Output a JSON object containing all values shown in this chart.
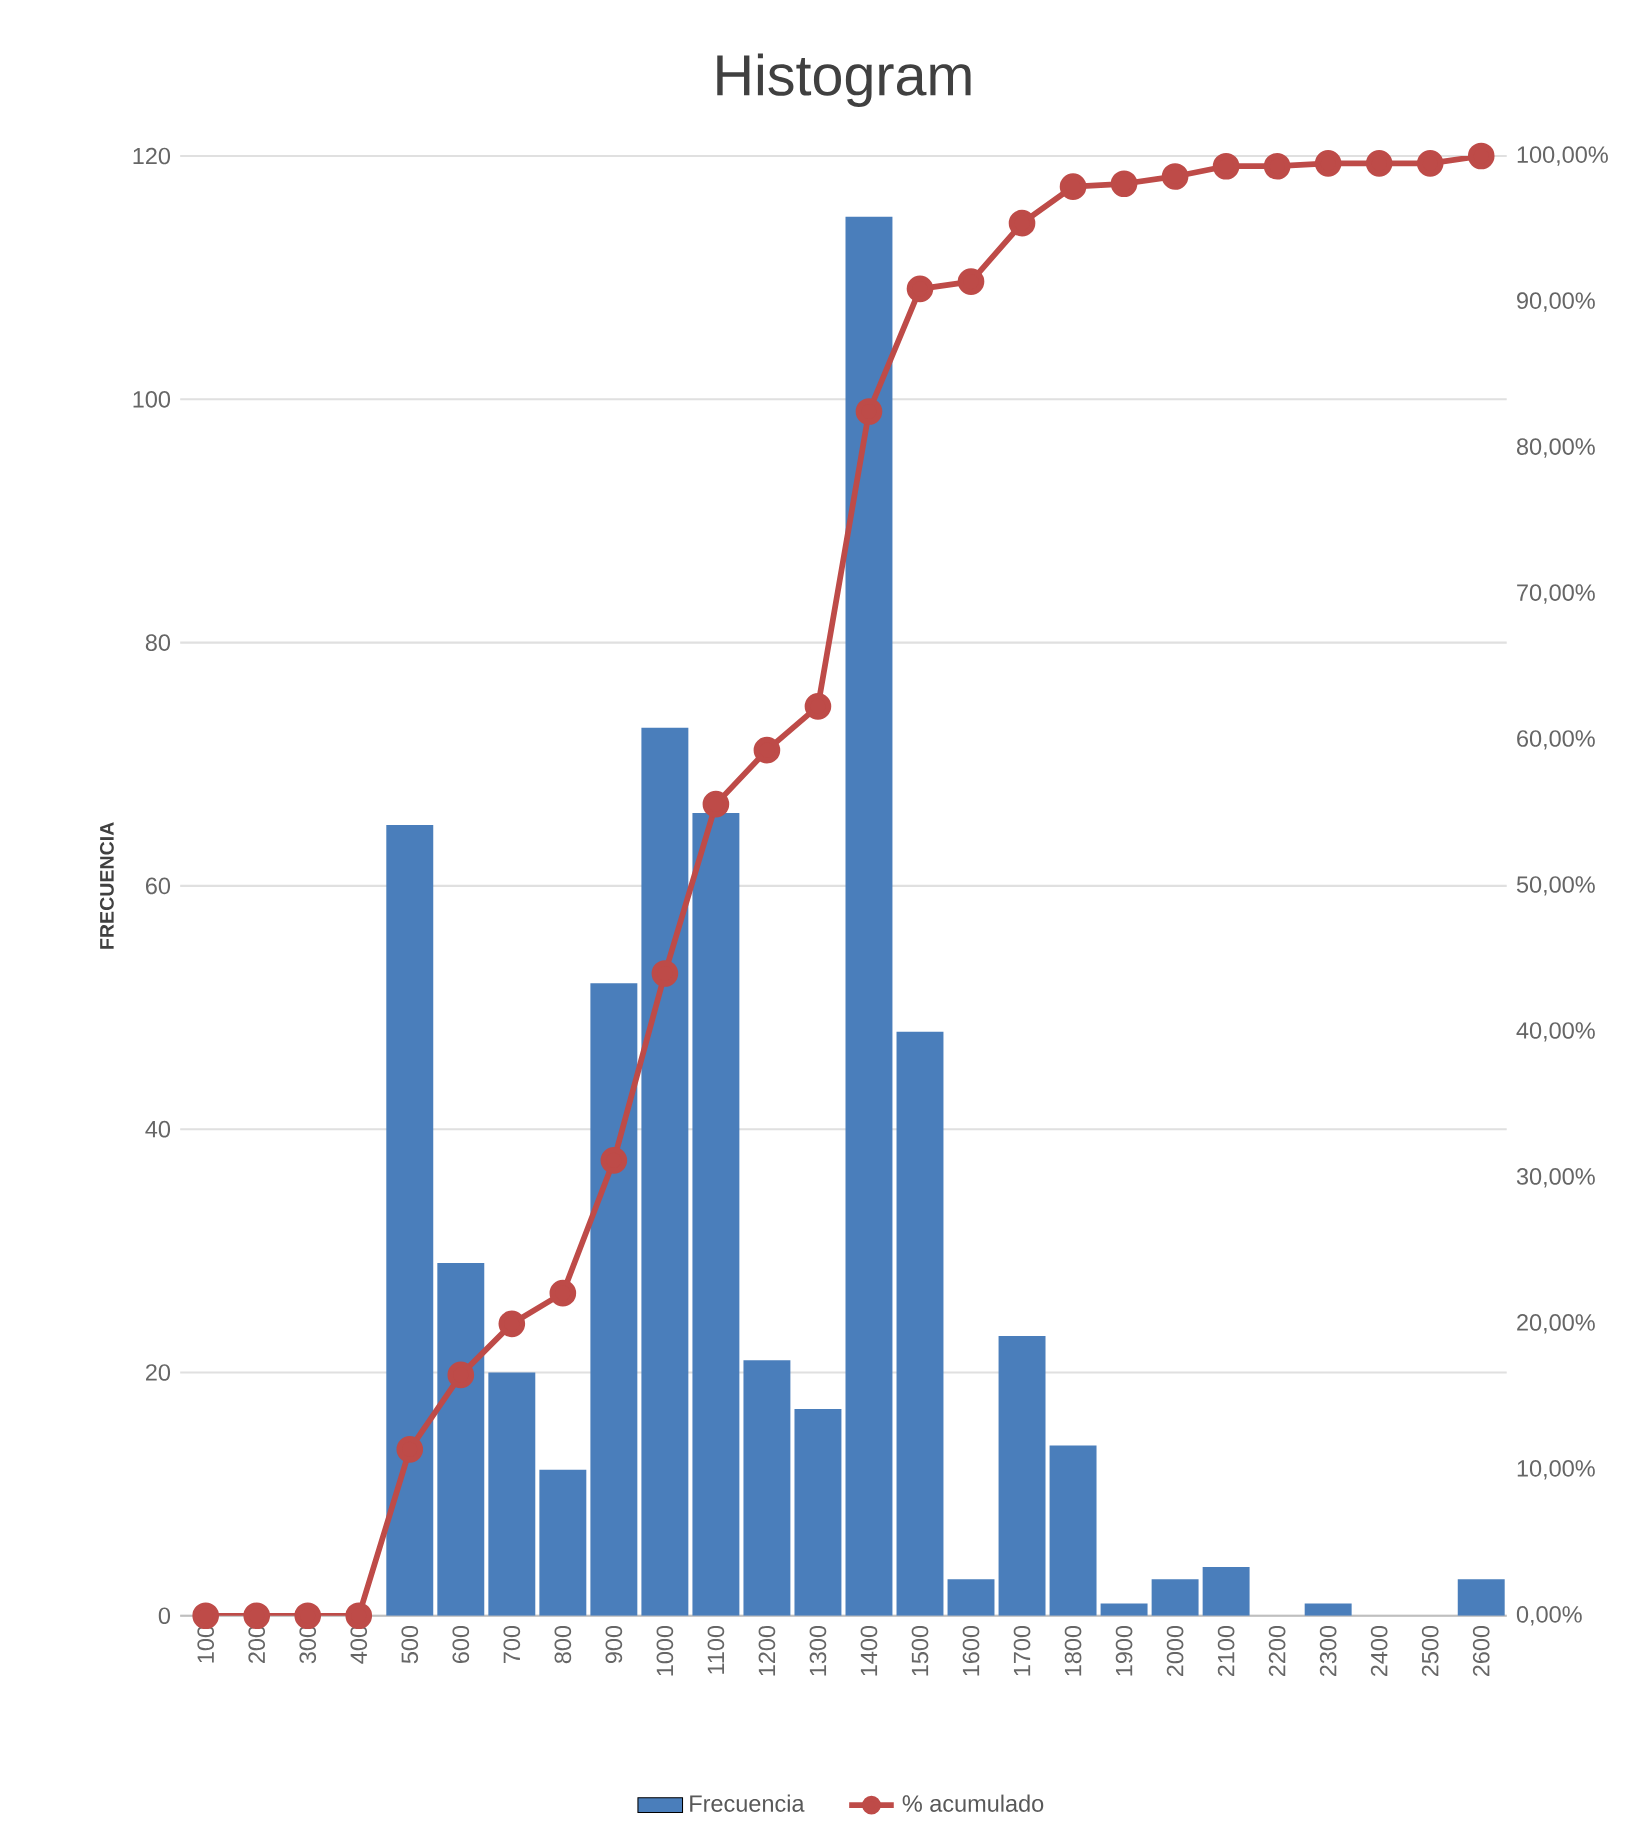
{
  "chart_data": {
    "type": "bar",
    "title": "Histogram",
    "ylabel": "FRECUENCIA",
    "categories": [
      "100",
      "200",
      "300",
      "400",
      "500",
      "600",
      "700",
      "800",
      "900",
      "1000",
      "1100",
      "1200",
      "1300",
      "1400",
      "1500",
      "1600",
      "1700",
      "1800",
      "1900",
      "2000",
      "2100",
      "2200",
      "2300",
      "2400",
      "2500",
      "2600"
    ],
    "series": [
      {
        "name": "Frecuencia",
        "color": "#4a7ebb",
        "values": [
          0,
          0,
          0,
          0,
          65,
          29,
          20,
          12,
          52,
          73,
          66,
          21,
          17,
          115,
          48,
          3,
          23,
          14,
          1,
          3,
          4,
          0,
          1,
          0,
          0,
          3
        ]
      },
      {
        "name": "% acumulado",
        "type": "line",
        "axis": "y2",
        "color": "#be4b48",
        "marker": "circle",
        "values": [
          0,
          0,
          0,
          0,
          11.4,
          16.5,
          20.0,
          22.1,
          31.2,
          44.0,
          55.6,
          59.3,
          62.3,
          82.5,
          90.9,
          91.4,
          95.4,
          97.9,
          98.1,
          98.6,
          99.3,
          99.3,
          99.5,
          99.5,
          99.5,
          100
        ]
      }
    ],
    "ylim": [
      0,
      120
    ],
    "yticks": [
      0,
      20,
      40,
      60,
      80,
      100,
      120
    ],
    "y2lim": [
      0,
      100
    ],
    "y2ticks": [
      {
        "value": 0,
        "label": "0,00%"
      },
      {
        "value": 10,
        "label": "10,00%"
      },
      {
        "value": 20,
        "label": "20,00%"
      },
      {
        "value": 30,
        "label": "30,00%"
      },
      {
        "value": 40,
        "label": "40,00%"
      },
      {
        "value": 50,
        "label": "50,00%"
      },
      {
        "value": 60,
        "label": "60,00%"
      },
      {
        "value": 70,
        "label": "70,00%"
      },
      {
        "value": 80,
        "label": "80,00%"
      },
      {
        "value": 90,
        "label": "90,00%"
      },
      {
        "value": 100,
        "label": "100,00%"
      }
    ],
    "grid": "y",
    "legend": "bottom"
  }
}
